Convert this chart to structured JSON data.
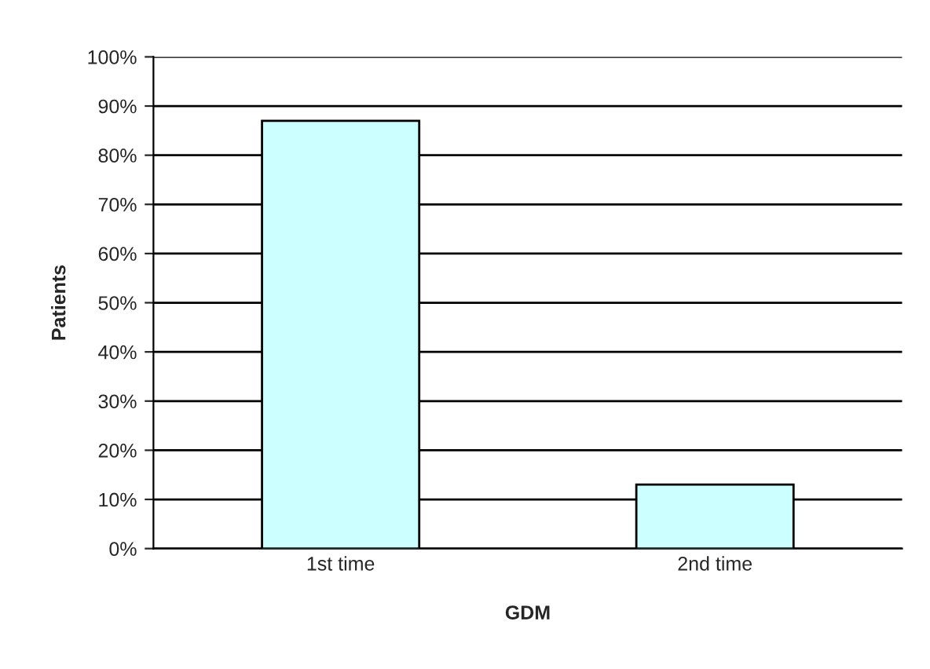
{
  "chart_data": {
    "type": "bar",
    "xlabel": "GDM",
    "ylabel": "Patients",
    "categories": [
      "1st time",
      "2nd time"
    ],
    "values": [
      87,
      13
    ],
    "color": "#ccffff",
    "ylim": [
      0,
      100
    ],
    "yticks": [
      {
        "value": 0,
        "label": "0%"
      },
      {
        "value": 10,
        "label": "10%"
      },
      {
        "value": 20,
        "label": "20%"
      },
      {
        "value": 30,
        "label": "30%"
      },
      {
        "value": 40,
        "label": "40%"
      },
      {
        "value": 50,
        "label": "50%"
      },
      {
        "value": 60,
        "label": "60%"
      },
      {
        "value": 70,
        "label": "70%"
      },
      {
        "value": 80,
        "label": "80%"
      },
      {
        "value": 90,
        "label": "90%"
      },
      {
        "value": 100,
        "label": "100%"
      }
    ],
    "grid": "y",
    "legend": false
  }
}
